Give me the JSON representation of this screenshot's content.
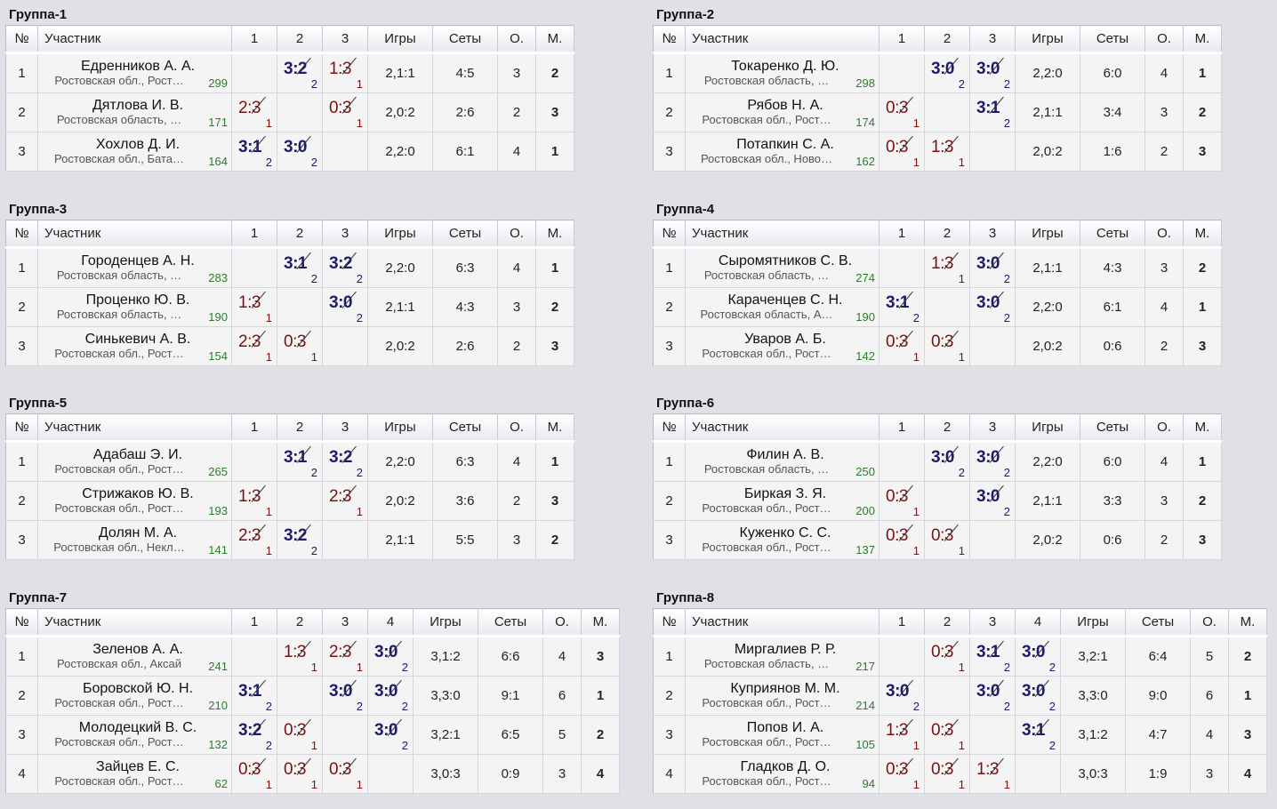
{
  "labels": {
    "num": "№",
    "name": "Участник",
    "games": "Игры",
    "sets": "Сеты",
    "points": "О.",
    "place": "М."
  },
  "groups": [
    {
      "title": "Группа-1",
      "size": 3,
      "players": [
        {
          "num": "1",
          "name": "Едренников А. А.",
          "region": "Ростовская обл., Рост…",
          "rating": "299",
          "results": [
            null,
            {
              "s": "3:2",
              "p": "2",
              "w": true
            },
            {
              "s": "1:3",
              "p": "1",
              "w": false
            }
          ],
          "games": "2,1:1",
          "sets": "4:5",
          "points": "3",
          "place": "2"
        },
        {
          "num": "2",
          "name": "Дятлова И. В.",
          "region": "Ростовская область, …",
          "rating": "171",
          "results": [
            {
              "s": "2:3",
              "p": "1",
              "w": false
            },
            null,
            {
              "s": "0:3",
              "p": "1",
              "w": false
            }
          ],
          "games": "2,0:2",
          "sets": "2:6",
          "points": "2",
          "place": "3"
        },
        {
          "num": "3",
          "name": "Хохлов Д. И.",
          "region": "Ростовская обл., Бата…",
          "rating": "164",
          "results": [
            {
              "s": "3:1",
              "p": "2",
              "w": true
            },
            {
              "s": "3:0",
              "p": "2",
              "w": true
            },
            null
          ],
          "games": "2,2:0",
          "sets": "6:1",
          "points": "4",
          "place": "1"
        }
      ]
    },
    {
      "title": "Группа-2",
      "size": 3,
      "players": [
        {
          "num": "1",
          "name": "Токаренко Д. Ю.",
          "region": "Ростовская область, …",
          "rating": "298",
          "results": [
            null,
            {
              "s": "3:0",
              "p": "2",
              "w": true
            },
            {
              "s": "3:0",
              "p": "2",
              "w": true
            }
          ],
          "games": "2,2:0",
          "sets": "6:0",
          "points": "4",
          "place": "1"
        },
        {
          "num": "2",
          "name": "Рябов Н. А.",
          "region": "Ростовская обл., Рост…",
          "rating": "174",
          "results": [
            {
              "s": "0:3",
              "p": "1",
              "w": false
            },
            null,
            {
              "s": "3:1",
              "p": "2",
              "w": true
            }
          ],
          "games": "2,1:1",
          "sets": "3:4",
          "points": "3",
          "place": "2"
        },
        {
          "num": "3",
          "name": "Потапкин С. А.",
          "region": "Ростовская обл., Ново…",
          "rating": "162",
          "results": [
            {
              "s": "0:3",
              "p": "1",
              "w": false
            },
            {
              "s": "1:3",
              "p": "1",
              "w": false
            },
            null
          ],
          "games": "2,0:2",
          "sets": "1:6",
          "points": "2",
          "place": "3"
        }
      ]
    },
    {
      "title": "Группа-3",
      "size": 3,
      "players": [
        {
          "num": "1",
          "name": "Городенцев А. Н.",
          "region": "Ростовская область, …",
          "rating": "283",
          "results": [
            null,
            {
              "s": "3:1",
              "p": "2",
              "w": true
            },
            {
              "s": "3:2",
              "p": "2",
              "w": true
            }
          ],
          "games": "2,2:0",
          "sets": "6:3",
          "points": "4",
          "place": "1"
        },
        {
          "num": "2",
          "name": "Проценко Ю. В.",
          "region": "Ростовская область, …",
          "rating": "190",
          "results": [
            {
              "s": "1:3",
              "p": "1",
              "w": false
            },
            null,
            {
              "s": "3:0",
              "p": "2",
              "w": true
            }
          ],
          "games": "2,1:1",
          "sets": "4:3",
          "points": "3",
          "place": "2"
        },
        {
          "num": "3",
          "name": "Синькевич А. В.",
          "region": "Ростовская обл., Рост…",
          "rating": "154",
          "results": [
            {
              "s": "2:3",
              "p": "1",
              "w": false
            },
            {
              "s": "0:3",
              "p": "1",
              "w": false
            },
            null
          ],
          "games": "2,0:2",
          "sets": "2:6",
          "points": "2",
          "place": "3"
        }
      ]
    },
    {
      "title": "Группа-4",
      "size": 3,
      "players": [
        {
          "num": "1",
          "name": "Сыромятников С. В.",
          "region": "Ростовская область, …",
          "rating": "274",
          "results": [
            null,
            {
              "s": "1:3",
              "p": "1",
              "w": false
            },
            {
              "s": "3:0",
              "p": "2",
              "w": true
            }
          ],
          "games": "2,1:1",
          "sets": "4:3",
          "points": "3",
          "place": "2"
        },
        {
          "num": "2",
          "name": "Караченцев С. Н.",
          "region": "Ростовская область, А…",
          "rating": "190",
          "results": [
            {
              "s": "3:1",
              "p": "2",
              "w": true
            },
            null,
            {
              "s": "3:0",
              "p": "2",
              "w": true
            }
          ],
          "games": "2,2:0",
          "sets": "6:1",
          "points": "4",
          "place": "1"
        },
        {
          "num": "3",
          "name": "Уваров А. Б.",
          "region": "Ростовская обл., Рост…",
          "rating": "142",
          "results": [
            {
              "s": "0:3",
              "p": "1",
              "w": false
            },
            {
              "s": "0:3",
              "p": "1",
              "w": false
            },
            null
          ],
          "games": "2,0:2",
          "sets": "0:6",
          "points": "2",
          "place": "3"
        }
      ]
    },
    {
      "title": "Группа-5",
      "size": 3,
      "players": [
        {
          "num": "1",
          "name": "Адабаш Э. И.",
          "region": "Ростовская обл., Рост…",
          "rating": "265",
          "results": [
            null,
            {
              "s": "3:1",
              "p": "2",
              "w": true
            },
            {
              "s": "3:2",
              "p": "2",
              "w": true
            }
          ],
          "games": "2,2:0",
          "sets": "6:3",
          "points": "4",
          "place": "1"
        },
        {
          "num": "2",
          "name": "Стрижаков Ю. В.",
          "region": "Ростовская обл., Рост…",
          "rating": "193",
          "results": [
            {
              "s": "1:3",
              "p": "1",
              "w": false
            },
            null,
            {
              "s": "2:3",
              "p": "1",
              "w": false
            }
          ],
          "games": "2,0:2",
          "sets": "3:6",
          "points": "2",
          "place": "3"
        },
        {
          "num": "3",
          "name": "Долян М. А.",
          "region": "Ростовская обл., Некл…",
          "rating": "141",
          "results": [
            {
              "s": "2:3",
              "p": "1",
              "w": false
            },
            {
              "s": "3:2",
              "p": "2",
              "w": true
            },
            null
          ],
          "games": "2,1:1",
          "sets": "5:5",
          "points": "3",
          "place": "2"
        }
      ]
    },
    {
      "title": "Группа-6",
      "size": 3,
      "players": [
        {
          "num": "1",
          "name": "Филин А. В.",
          "region": "Ростовская область, …",
          "rating": "250",
          "results": [
            null,
            {
              "s": "3:0",
              "p": "2",
              "w": true
            },
            {
              "s": "3:0",
              "p": "2",
              "w": true
            }
          ],
          "games": "2,2:0",
          "sets": "6:0",
          "points": "4",
          "place": "1"
        },
        {
          "num": "2",
          "name": "Биркая З. Я.",
          "region": "Ростовская обл., Рост…",
          "rating": "200",
          "results": [
            {
              "s": "0:3",
              "p": "1",
              "w": false
            },
            null,
            {
              "s": "3:0",
              "p": "2",
              "w": true
            }
          ],
          "games": "2,1:1",
          "sets": "3:3",
          "points": "3",
          "place": "2"
        },
        {
          "num": "3",
          "name": "Куженко С. С.",
          "region": "Ростовская обл., Рост…",
          "rating": "137",
          "results": [
            {
              "s": "0:3",
              "p": "1",
              "w": false
            },
            {
              "s": "0:3",
              "p": "1",
              "w": false
            },
            null
          ],
          "games": "2,0:2",
          "sets": "0:6",
          "points": "2",
          "place": "3"
        }
      ]
    },
    {
      "title": "Группа-7",
      "size": 4,
      "players": [
        {
          "num": "1",
          "name": "Зеленов А. А.",
          "region": "Ростовская обл., Аксай",
          "rating": "241",
          "results": [
            null,
            {
              "s": "1:3",
              "p": "1",
              "w": false
            },
            {
              "s": "2:3",
              "p": "1",
              "w": false
            },
            {
              "s": "3:0",
              "p": "2",
              "w": true
            }
          ],
          "games": "3,1:2",
          "sets": "6:6",
          "points": "4",
          "place": "3"
        },
        {
          "num": "2",
          "name": "Боровской Ю. Н.",
          "region": "Ростовская обл., Рост…",
          "rating": "210",
          "results": [
            {
              "s": "3:1",
              "p": "2",
              "w": true
            },
            null,
            {
              "s": "3:0",
              "p": "2",
              "w": true
            },
            {
              "s": "3:0",
              "p": "2",
              "w": true
            }
          ],
          "games": "3,3:0",
          "sets": "9:1",
          "points": "6",
          "place": "1"
        },
        {
          "num": "3",
          "name": "Молодецкий В. С.",
          "region": "Ростовская обл., Рост…",
          "rating": "132",
          "results": [
            {
              "s": "3:2",
              "p": "2",
              "w": true
            },
            {
              "s": "0:3",
              "p": "1",
              "w": false
            },
            null,
            {
              "s": "3:0",
              "p": "2",
              "w": true
            }
          ],
          "games": "3,2:1",
          "sets": "6:5",
          "points": "5",
          "place": "2"
        },
        {
          "num": "4",
          "name": "Зайцев Е. С.",
          "region": "Ростовская обл., Рост…",
          "rating": "62",
          "results": [
            {
              "s": "0:3",
              "p": "1",
              "w": false
            },
            {
              "s": "0:3",
              "p": "1",
              "w": false
            },
            {
              "s": "0:3",
              "p": "1",
              "w": false
            },
            null
          ],
          "games": "3,0:3",
          "sets": "0:9",
          "points": "3",
          "place": "4"
        }
      ]
    },
    {
      "title": "Группа-8",
      "size": 4,
      "players": [
        {
          "num": "1",
          "name": "Миргалиев Р. Р.",
          "region": "Ростовская область, …",
          "rating": "217",
          "results": [
            null,
            {
              "s": "0:3",
              "p": "1",
              "w": false
            },
            {
              "s": "3:1",
              "p": "2",
              "w": true
            },
            {
              "s": "3:0",
              "p": "2",
              "w": true
            }
          ],
          "games": "3,2:1",
          "sets": "6:4",
          "points": "5",
          "place": "2"
        },
        {
          "num": "2",
          "name": "Куприянов М. М.",
          "region": "Ростовская обл., Рост…",
          "rating": "214",
          "results": [
            {
              "s": "3:0",
              "p": "2",
              "w": true
            },
            null,
            {
              "s": "3:0",
              "p": "2",
              "w": true
            },
            {
              "s": "3:0",
              "p": "2",
              "w": true
            }
          ],
          "games": "3,3:0",
          "sets": "9:0",
          "points": "6",
          "place": "1"
        },
        {
          "num": "3",
          "name": "Попов И. А.",
          "region": "Ростовская обл., Рост…",
          "rating": "105",
          "results": [
            {
              "s": "1:3",
              "p": "1",
              "w": false
            },
            {
              "s": "0:3",
              "p": "1",
              "w": false
            },
            null,
            {
              "s": "3:1",
              "p": "2",
              "w": true
            }
          ],
          "games": "3,1:2",
          "sets": "4:7",
          "points": "4",
          "place": "3"
        },
        {
          "num": "4",
          "name": "Гладков Д. О.",
          "region": "Ростовская обл., Рост…",
          "rating": "94",
          "results": [
            {
              "s": "0:3",
              "p": "1",
              "w": false
            },
            {
              "s": "0:3",
              "p": "1",
              "w": false
            },
            {
              "s": "1:3",
              "p": "1",
              "w": false
            },
            null
          ],
          "games": "3,0:3",
          "sets": "1:9",
          "points": "3",
          "place": "4"
        }
      ]
    }
  ]
}
